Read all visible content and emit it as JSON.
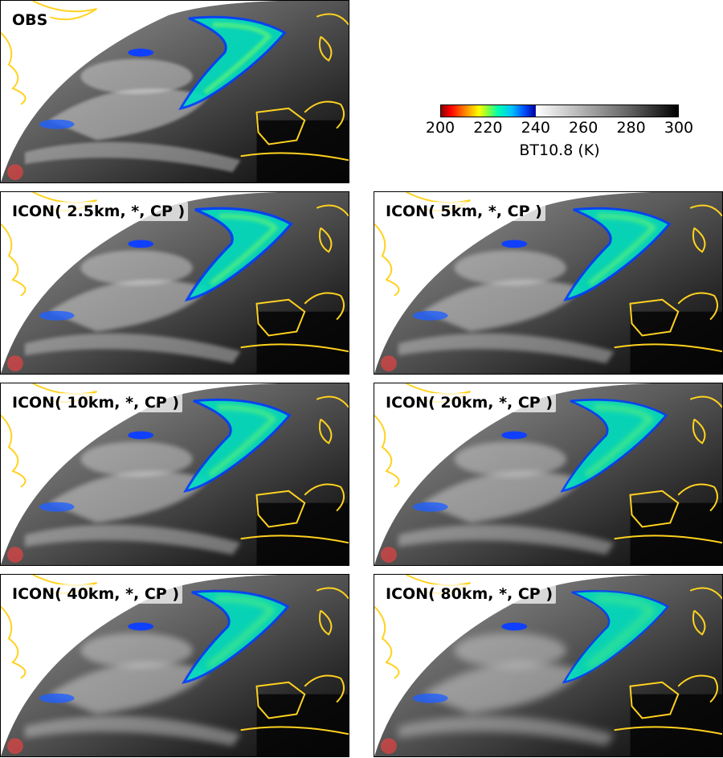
{
  "panels": [
    {
      "id": "obs",
      "title": "OBS"
    },
    {
      "id": "icon25",
      "title": "ICON( 2.5km, *, CP )"
    },
    {
      "id": "icon5",
      "title": "ICON( 5km, *, CP )"
    },
    {
      "id": "icon10",
      "title": "ICON( 10km, *, CP )"
    },
    {
      "id": "icon20",
      "title": "ICON( 20km, *, CP )"
    },
    {
      "id": "icon40",
      "title": "ICON( 40km, *, CP )"
    },
    {
      "id": "icon80",
      "title": "ICON( 80km, *, CP )"
    }
  ],
  "colorbar": {
    "ticks": [
      "200",
      "220",
      "240",
      "260",
      "280",
      "300"
    ],
    "label": "BT10.8 (K)",
    "range": [
      200,
      300
    ],
    "cold_colors": [
      "#8b0000",
      "#ff0000",
      "#ffff00",
      "#00ffb0",
      "#00c0ff",
      "#0000a0"
    ],
    "warm_colors": [
      "#ffffff",
      "#000000"
    ]
  },
  "colors": {
    "coastline": "#ffd21f",
    "earth_bg": "#ffffff"
  }
}
